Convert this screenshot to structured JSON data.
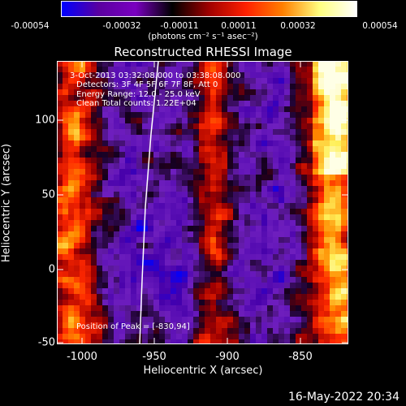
{
  "colorbar": {
    "ticks": [
      "-0.00054",
      "-0.00032",
      "-0.00011",
      "0.00011",
      "0.00032",
      "0.00054"
    ],
    "unit_label": "(photons cm⁻² s⁻¹ asec⁻²)"
  },
  "title": "Reconstructed RHESSI Image",
  "annotations": {
    "time_range": "3-Oct-2013 03:32:08.000 to 03:38:08.000",
    "detectors": "Detectors: 3F 4F 5F 6F 7F 8F, Att 0",
    "energy": "Energy Range: 12.0 - 25.0 keV",
    "clean": "Clean     Total counts: 1.22E+04",
    "peak": "Position of Peak = [-830,94]"
  },
  "axes": {
    "xlabel": "Heliocentric X (arcsec)",
    "ylabel": "Heliocentric Y (arcsec)",
    "x_ticks": [
      "-1000",
      "-950",
      "-900",
      "-850"
    ],
    "y_ticks": [
      "100",
      "50",
      "0",
      "-50"
    ],
    "x_range": [
      -1008,
      -822
    ],
    "y_range": [
      -52,
      131
    ]
  },
  "timestamp": "16-May-2022 20:34",
  "colors": {
    "colormap": [
      "#0000ff",
      "#5a00a0",
      "#7a00c0",
      "#000000",
      "#a00000",
      "#ff2000",
      "#ff8000",
      "#ffff80",
      "#ffffff"
    ]
  }
}
